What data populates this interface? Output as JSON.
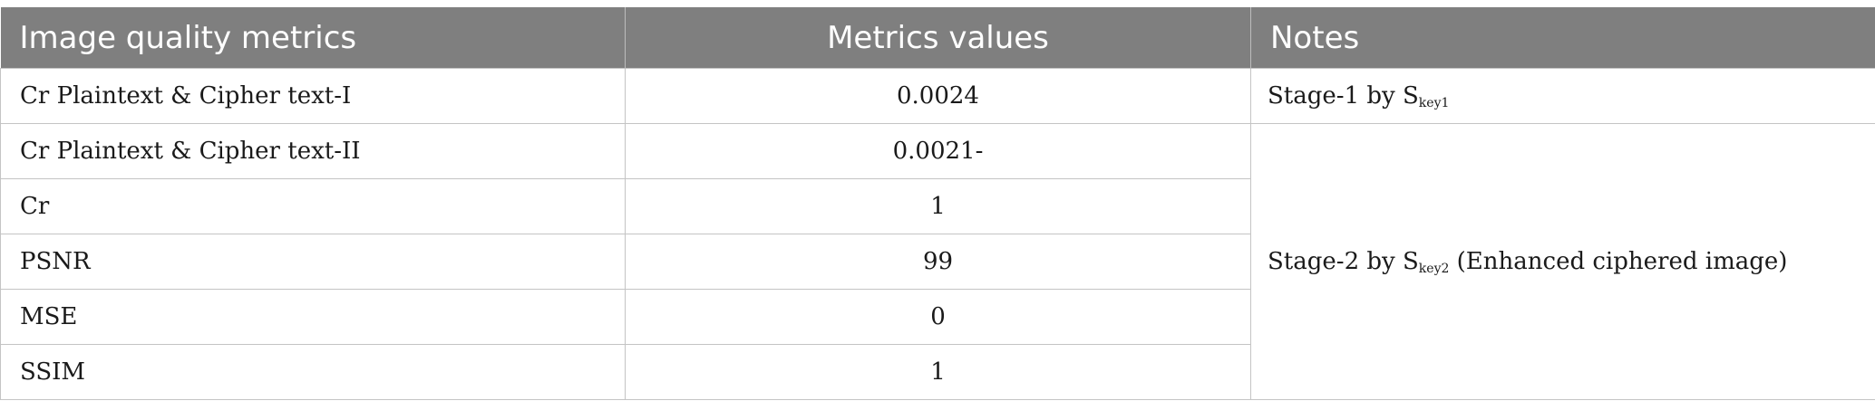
{
  "table": {
    "headers": [
      "Image quality metrics",
      "Metrics values",
      "Notes"
    ],
    "rows": [
      {
        "metric": "Cr Plaintext & Cipher text-I",
        "value": "0.0024"
      },
      {
        "metric": "Cr Plaintext & Cipher text-II",
        "value": "0.0021-"
      },
      {
        "metric": "Cr",
        "value": "1"
      },
      {
        "metric": "PSNR",
        "value": "99"
      },
      {
        "metric": "MSE",
        "value": "0"
      },
      {
        "metric": "SSIM",
        "value": "1"
      }
    ],
    "notes": {
      "stage1": {
        "prefix": "Stage-1 by S",
        "sub": "key1",
        "suffix": ""
      },
      "stage2": {
        "prefix": "Stage-2 by S",
        "sub": "key2",
        "suffix": " (Enhanced ciphered image)"
      }
    },
    "colors": {
      "header_bg": "#7f7f7f",
      "header_text": "#ffffff",
      "border": "#c4c4c4"
    }
  }
}
